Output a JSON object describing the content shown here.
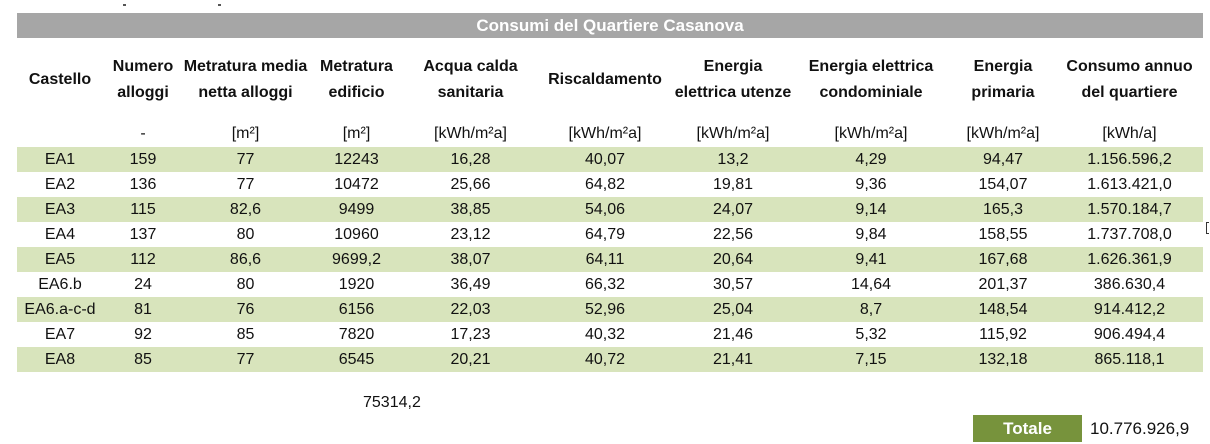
{
  "table": {
    "title": "Consumi del Quartiere Casanova",
    "headers": [
      "Castello",
      "Numero alloggi",
      "Metratura media netta alloggi",
      "Metratura edificio",
      "Acqua calda sanitaria",
      "Riscaldamento",
      "Energia elettrica utenze",
      "Energia elettrica condominiale",
      "Energia primaria",
      "Consumo annuo del quartiere"
    ],
    "units": [
      "",
      "-",
      "[m²]",
      "[m²]",
      "[kWh/m²a]",
      "[kWh/m²a]",
      "[kWh/m²a]",
      "[kWh/m²a]",
      "[kWh/m²a]",
      "[kWh/a]"
    ],
    "rows": [
      [
        "EA1",
        "159",
        "77",
        "12243",
        "16,28",
        "40,07",
        "13,2",
        "4,29",
        "94,47",
        "1.156.596,2"
      ],
      [
        "EA2",
        "136",
        "77",
        "10472",
        "25,66",
        "64,82",
        "19,81",
        "9,36",
        "154,07",
        "1.613.421,0"
      ],
      [
        "EA3",
        "115",
        "82,6",
        "9499",
        "38,85",
        "54,06",
        "24,07",
        "9,14",
        "165,3",
        "1.570.184,7"
      ],
      [
        "EA4",
        "137",
        "80",
        "10960",
        "23,12",
        "64,79",
        "22,56",
        "9,84",
        "158,55",
        "1.737.708,0"
      ],
      [
        "EA5",
        "112",
        "86,6",
        "9699,2",
        "38,07",
        "64,11",
        "20,64",
        "9,41",
        "167,68",
        "1.626.361,9"
      ],
      [
        "EA6.b",
        "24",
        "80",
        "1920",
        "36,49",
        "66,32",
        "30,57",
        "14,64",
        "201,37",
        "386.630,4"
      ],
      [
        "EA6.a-c-d",
        "81",
        "76",
        "6156",
        "22,03",
        "52,96",
        "25,04",
        "8,7",
        "148,54",
        "914.412,2"
      ],
      [
        "EA7",
        "92",
        "85",
        "7820",
        "17,23",
        "40,32",
        "21,46",
        "5,32",
        "115,92",
        "906.494,4"
      ],
      [
        "EA8",
        "85",
        "77",
        "6545",
        "20,21",
        "40,72",
        "21,41",
        "7,15",
        "132,18",
        "865.118,1"
      ]
    ],
    "building_area_sum": "75314,2",
    "total_label": "Totale",
    "total_value": "10.776.926,9"
  },
  "colors": {
    "title_bg": "#a6a6a6",
    "row_stripe": "#d8e4bc",
    "total_bg": "#77933c"
  }
}
